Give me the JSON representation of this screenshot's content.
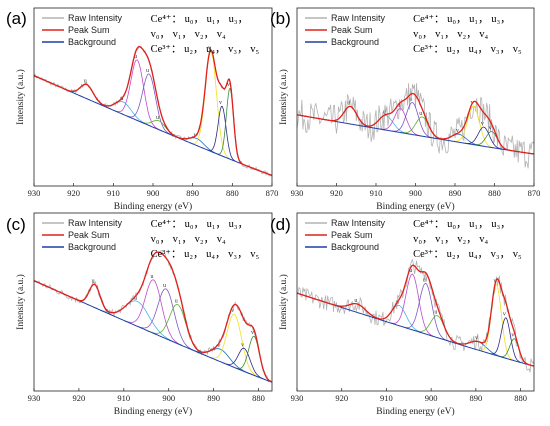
{
  "legend": {
    "raw": "Raw Intensity",
    "sum": "Peak Sum",
    "bg": "Background"
  },
  "annotations": {
    "ce4": "Ce⁴⁺： u₀， u₁， u₃，",
    "ce4_cont": "v₀， v₁， v₂， v₄",
    "ce3": "Ce³⁺： u₂， u₄， v₃， v₅"
  },
  "colors": {
    "raw": "#b3b3b3",
    "sum": "#e0201b",
    "background": "#1f3fa6",
    "components": [
      "#8b4a1c",
      "#4fb3e6",
      "#c04ad0",
      "#7d59c4",
      "#5ab02e",
      "#1f6fb5",
      "#f0e020",
      "#2a2a8a",
      "#3c8a3c",
      "#d65aa0"
    ]
  },
  "chart_data": [
    {
      "type": "line",
      "panel_label": "(a)",
      "xlabel": "Binding energy (eV)",
      "ylabel": "Intensity (a.u.)",
      "xlim": [
        930,
        870
      ],
      "x_ticks": [
        930,
        920,
        910,
        900,
        890,
        880,
        870
      ],
      "series": [
        {
          "name": "Raw Intensity"
        },
        {
          "name": "Peak Sum"
        },
        {
          "name": "Background"
        }
      ],
      "components": [
        {
          "label": "u",
          "center": 916.7,
          "height": 0.08,
          "width": 1.6
        },
        {
          "label": "u",
          "center": 907.5,
          "height": 0.07,
          "width": 2.0
        },
        {
          "label": "u",
          "center": 904.0,
          "height": 0.34,
          "width": 1.6
        },
        {
          "label": "u",
          "center": 901.0,
          "height": 0.29,
          "width": 1.6
        },
        {
          "label": "u",
          "center": 898.5,
          "height": 0.05,
          "width": 1.6
        },
        {
          "label": "v",
          "center": 889.0,
          "height": 0.04,
          "width": 1.8
        },
        {
          "label": "v",
          "center": 885.4,
          "height": 0.56,
          "width": 1.4
        },
        {
          "label": "v",
          "center": 882.6,
          "height": 0.28,
          "width": 1.0
        },
        {
          "label": "v",
          "center": 880.6,
          "height": 0.4,
          "width": 0.9
        }
      ]
    },
    {
      "type": "line",
      "panel_label": "(b)",
      "xlabel": "Binding energy (eV)",
      "ylabel": "Intensity (a.u.)",
      "xlim": [
        930,
        870
      ],
      "x_ticks": [
        930,
        920,
        910,
        900,
        890,
        880,
        870
      ],
      "series": [
        {
          "name": "Raw Intensity"
        },
        {
          "name": "Peak Sum"
        },
        {
          "name": "Background"
        }
      ],
      "components": [
        {
          "label": "u",
          "center": 916.5,
          "height": 0.11,
          "width": 1.6
        },
        {
          "label": "u",
          "center": 907.5,
          "height": 0.09,
          "width": 1.8
        },
        {
          "label": "u",
          "center": 903.8,
          "height": 0.15,
          "width": 1.5
        },
        {
          "label": "u",
          "center": 900.8,
          "height": 0.2,
          "width": 1.5
        },
        {
          "label": "u",
          "center": 898.3,
          "height": 0.12,
          "width": 1.6
        },
        {
          "label": "v",
          "center": 889.0,
          "height": 0.05,
          "width": 1.8
        },
        {
          "label": "v",
          "center": 885.3,
          "height": 0.24,
          "width": 1.5
        },
        {
          "label": "v",
          "center": 882.7,
          "height": 0.12,
          "width": 1.4
        },
        {
          "label": "v",
          "center": 880.7,
          "height": 0.1,
          "width": 1.4
        }
      ]
    },
    {
      "type": "line",
      "panel_label": "(c)",
      "xlabel": "Binding energy (eV)",
      "ylabel": "Intensity (a.u.)",
      "xlim": [
        930,
        877
      ],
      "x_ticks": [
        930,
        920,
        910,
        900,
        890,
        880
      ],
      "series": [
        {
          "name": "Raw Intensity"
        },
        {
          "name": "Peak Sum"
        },
        {
          "name": "Background"
        }
      ],
      "components": [
        {
          "label": "u",
          "center": 916.5,
          "height": 0.13,
          "width": 1.2
        },
        {
          "label": "u",
          "center": 907.0,
          "height": 0.14,
          "width": 2.6
        },
        {
          "label": "u",
          "center": 903.4,
          "height": 0.3,
          "width": 1.8
        },
        {
          "label": "u",
          "center": 900.6,
          "height": 0.28,
          "width": 1.8
        },
        {
          "label": "u",
          "center": 898.0,
          "height": 0.22,
          "width": 1.8
        },
        {
          "label": "v",
          "center": 888.5,
          "height": 0.07,
          "width": 2.0
        },
        {
          "label": "v",
          "center": 885.4,
          "height": 0.3,
          "width": 1.6
        },
        {
          "label": "v",
          "center": 883.2,
          "height": 0.13,
          "width": 1.3
        },
        {
          "label": "v",
          "center": 881.0,
          "height": 0.22,
          "width": 1.2
        }
      ]
    },
    {
      "type": "line",
      "panel_label": "(d)",
      "xlabel": "Binding energy (eV)",
      "ylabel": "Intensity (a.u.)",
      "xlim": [
        930,
        877
      ],
      "x_ticks": [
        930,
        920,
        910,
        900,
        890,
        880
      ],
      "series": [
        {
          "name": "Raw Intensity"
        },
        {
          "name": "Peak Sum"
        },
        {
          "name": "Background"
        }
      ],
      "components": [
        {
          "label": "u",
          "center": 916.5,
          "height": 0.05,
          "width": 1.8
        },
        {
          "label": "u",
          "center": 907.2,
          "height": 0.12,
          "width": 1.6
        },
        {
          "label": "u",
          "center": 904.2,
          "height": 0.33,
          "width": 1.4
        },
        {
          "label": "u",
          "center": 901.2,
          "height": 0.3,
          "width": 1.4
        },
        {
          "label": "u",
          "center": 898.6,
          "height": 0.13,
          "width": 1.5
        },
        {
          "label": "v",
          "center": 889.5,
          "height": 0.05,
          "width": 1.8
        },
        {
          "label": "v",
          "center": 885.4,
          "height": 0.42,
          "width": 1.1
        },
        {
          "label": "v",
          "center": 883.3,
          "height": 0.24,
          "width": 1.0
        },
        {
          "label": "v",
          "center": 881.4,
          "height": 0.13,
          "width": 1.0
        }
      ]
    }
  ]
}
